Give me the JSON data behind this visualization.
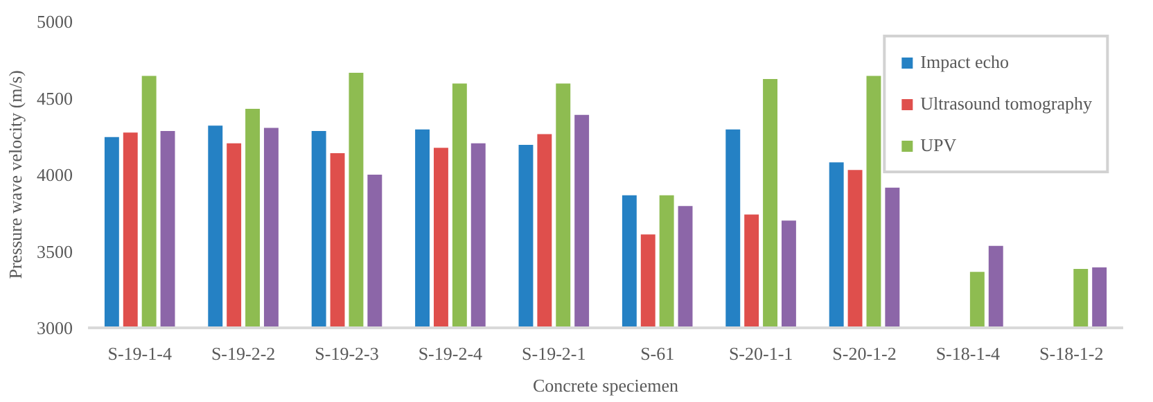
{
  "chart_data": {
    "type": "bar",
    "xlabel": "Concrete speciemen",
    "ylabel": "Pressure wave velocity (m/s)",
    "categories": [
      "S-19-1-4",
      "S-19-2-2",
      "S-19-2-3",
      "S-19-2-4",
      "S-19-2-1",
      "S-61",
      "S-20-1-1",
      "S-20-1-2",
      "S-18-1-4",
      "S-18-1-2"
    ],
    "series": [
      {
        "name": "Impact echo",
        "color": "#2581c4",
        "values": [
          4245,
          4320,
          4285,
          4295,
          4195,
          3865,
          4295,
          4080,
          null,
          null
        ]
      },
      {
        "name": "Ultrasound tomography",
        "color": "#df4f4c",
        "values": [
          4275,
          4205,
          4140,
          4175,
          4265,
          3610,
          3740,
          4030,
          null,
          null
        ]
      },
      {
        "name": "UPV",
        "color": "#8ebc51",
        "values": [
          4645,
          4430,
          4665,
          4595,
          4595,
          3865,
          4625,
          4645,
          3365,
          3385
        ]
      },
      {
        "color": "#8c66a8",
        "values": [
          4285,
          4305,
          4000,
          4205,
          4390,
          3795,
          3700,
          3915,
          3535,
          3395
        ]
      }
    ],
    "ylim": [
      3000,
      5000
    ],
    "yticks": [
      3000,
      3500,
      4000,
      4500,
      5000
    ],
    "grid": false,
    "legend": "top right"
  }
}
